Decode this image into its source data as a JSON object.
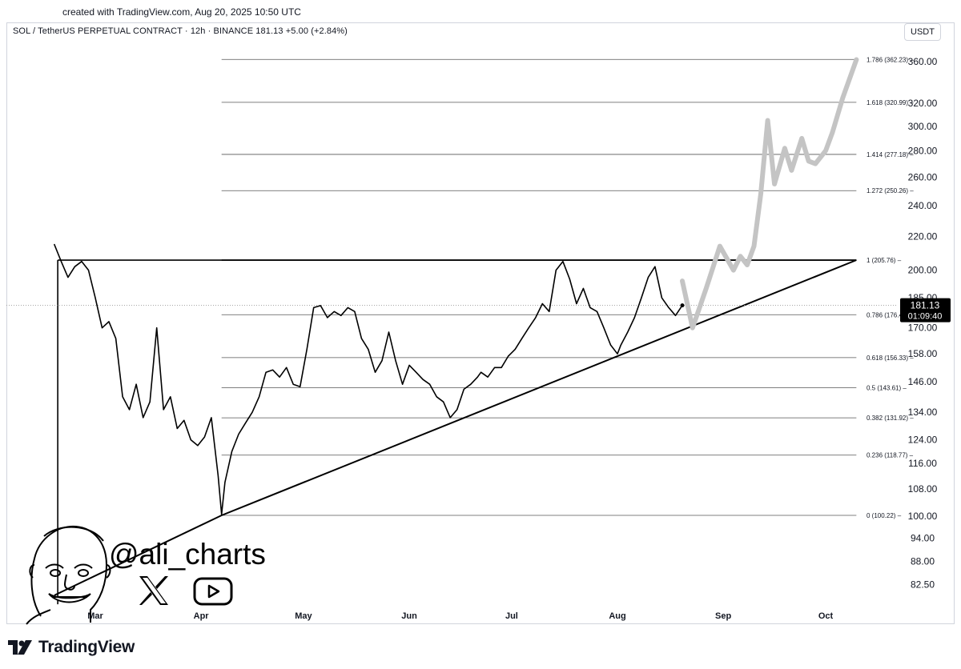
{
  "header": {
    "created_text": "created with TradingView.com, Aug 20, 2025 10:50 UTC",
    "symbol_line": "SOL / TetherUS PERPETUAL CONTRACT · 12h · BINANCE  181.13  +5.00 (+2.84%)",
    "currency_button": "USDT"
  },
  "footer": {
    "brand": "TradingView"
  },
  "watermark": {
    "handle": "@ali_charts",
    "icons": [
      "x-logo-icon",
      "youtube-play-icon",
      "avatar-sketch"
    ]
  },
  "colors": {
    "price_line": "#000000",
    "projection": "#c4c4c4",
    "fib_line": "#787b86",
    "price_badge": "#000000"
  },
  "chart_data": {
    "type": "line",
    "title": "SOL / TetherUS PERPETUAL CONTRACT · 12h · BINANCE",
    "interval": "12h",
    "scale": "log",
    "ylim": [
      78,
      375
    ],
    "xlim": [
      "2025-02-17",
      "2025-10-15"
    ],
    "grid": false,
    "y_ticks": [
      82.5,
      88,
      94,
      100,
      108,
      116,
      124,
      134,
      146,
      158,
      170,
      185,
      200,
      220,
      240,
      260,
      280,
      300,
      320,
      360
    ],
    "y_tick_labels": [
      "82.50",
      "88.00",
      "94.00",
      "100.00",
      "108.00",
      "116.00",
      "124.00",
      "134.00",
      "146.00",
      "158.00",
      "170.00",
      "185.00",
      "200.00",
      "220.00",
      "240.00",
      "260.00",
      "280.00",
      "300.00",
      "320.00",
      "360.00"
    ],
    "x_ticks": [
      {
        "label": "Mar",
        "date": "2025-03-01"
      },
      {
        "label": "Apr",
        "date": "2025-04-01"
      },
      {
        "label": "May",
        "date": "2025-05-01"
      },
      {
        "label": "Jun",
        "date": "2025-06-01"
      },
      {
        "label": "Jul",
        "date": "2025-07-01"
      },
      {
        "label": "Aug",
        "date": "2025-08-01"
      },
      {
        "label": "Sep",
        "date": "2025-09-01"
      },
      {
        "label": "Oct",
        "date": "2025-10-01"
      }
    ],
    "current_price": {
      "value": 181.13,
      "label": "181.13",
      "countdown": "01:09:40"
    },
    "fib_levels": [
      {
        "ratio": 0,
        "price": 100.22,
        "label": "0 (100.22)"
      },
      {
        "ratio": 0.236,
        "price": 118.77,
        "label": "0.236 (118.77)"
      },
      {
        "ratio": 0.382,
        "price": 131.92,
        "label": "0.382 (131.92)"
      },
      {
        "ratio": 0.5,
        "price": 143.61,
        "label": "0.5 (143.61)"
      },
      {
        "ratio": 0.618,
        "price": 156.33,
        "label": "0.618 (156.33)"
      },
      {
        "ratio": 0.786,
        "price": 176.42,
        "label": "0.786 (176.42)"
      },
      {
        "ratio": 1,
        "price": 205.76,
        "label": "1 (205.76)"
      },
      {
        "ratio": 1.272,
        "price": 250.26,
        "label": "1.272 (250.26)"
      },
      {
        "ratio": 1.414,
        "price": 277.18,
        "label": "1.414 (277.18)"
      },
      {
        "ratio": 1.618,
        "price": 320.99,
        "label": "1.618 (320.99)"
      },
      {
        "ratio": 1.786,
        "price": 362.23,
        "label": "1.786 (362.23)"
      }
    ],
    "fib_range": {
      "start": "2025-04-07",
      "end": "2025-10-10"
    },
    "resistance_line": {
      "points": [
        {
          "x": "2025-02-18",
          "y": 205.76
        },
        {
          "x": "2025-10-10",
          "y": 205.76
        }
      ]
    },
    "vertical_marker": {
      "x": "2025-02-18",
      "y_top": 205.76,
      "y_bottom": 78
    },
    "trendline": {
      "points": [
        {
          "x": "2025-02-17",
          "y": 80
        },
        {
          "x": "2025-04-07",
          "y": 100.22
        },
        {
          "x": "2025-10-10",
          "y": 205.76
        }
      ]
    },
    "series": [
      {
        "name": "SOL",
        "x": [
          "2025-02-17",
          "2025-02-19",
          "2025-02-21",
          "2025-02-23",
          "2025-02-25",
          "2025-02-27",
          "2025-03-01",
          "2025-03-03",
          "2025-03-05",
          "2025-03-07",
          "2025-03-09",
          "2025-03-11",
          "2025-03-13",
          "2025-03-15",
          "2025-03-17",
          "2025-03-19",
          "2025-03-21",
          "2025-03-23",
          "2025-03-25",
          "2025-03-27",
          "2025-03-29",
          "2025-03-31",
          "2025-04-02",
          "2025-04-04",
          "2025-04-06",
          "2025-04-07",
          "2025-04-08",
          "2025-04-10",
          "2025-04-12",
          "2025-04-14",
          "2025-04-16",
          "2025-04-18",
          "2025-04-20",
          "2025-04-22",
          "2025-04-24",
          "2025-04-26",
          "2025-04-28",
          "2025-04-30",
          "2025-05-02",
          "2025-05-04",
          "2025-05-06",
          "2025-05-08",
          "2025-05-10",
          "2025-05-12",
          "2025-05-14",
          "2025-05-16",
          "2025-05-18",
          "2025-05-20",
          "2025-05-22",
          "2025-05-24",
          "2025-05-26",
          "2025-05-28",
          "2025-05-30",
          "2025-06-01",
          "2025-06-03",
          "2025-06-05",
          "2025-06-07",
          "2025-06-09",
          "2025-06-11",
          "2025-06-13",
          "2025-06-15",
          "2025-06-17",
          "2025-06-19",
          "2025-06-21",
          "2025-06-22",
          "2025-06-24",
          "2025-06-26",
          "2025-06-28",
          "2025-06-30",
          "2025-07-02",
          "2025-07-04",
          "2025-07-06",
          "2025-07-08",
          "2025-07-10",
          "2025-07-12",
          "2025-07-14",
          "2025-07-16",
          "2025-07-18",
          "2025-07-20",
          "2025-07-22",
          "2025-07-24",
          "2025-07-26",
          "2025-07-28",
          "2025-07-30",
          "2025-08-01",
          "2025-08-02",
          "2025-08-04",
          "2025-08-06",
          "2025-08-08",
          "2025-08-10",
          "2025-08-12",
          "2025-08-14",
          "2025-08-16",
          "2025-08-18",
          "2025-08-20"
        ],
        "y": [
          215,
          205,
          196,
          202,
          205,
          200,
          185,
          170,
          173,
          165,
          140,
          135,
          145,
          132,
          138,
          170,
          135,
          140,
          128,
          131,
          124,
          122,
          125,
          132,
          112,
          100.5,
          110,
          120,
          126,
          130,
          134,
          140,
          150,
          151,
          148,
          152,
          145,
          144,
          160,
          180,
          181,
          175,
          178,
          176,
          180,
          178,
          165,
          160,
          150,
          155,
          168,
          155,
          145,
          153,
          150,
          147,
          145,
          140,
          138,
          132,
          135,
          143,
          145,
          148,
          150,
          148,
          152,
          152,
          157,
          160,
          165,
          170,
          175,
          182,
          178,
          200,
          205,
          195,
          182,
          190,
          180,
          178,
          170,
          162,
          158,
          162,
          168,
          175,
          185,
          196,
          202,
          185,
          180,
          176,
          181.13
        ]
      },
      {
        "name": "Projection",
        "x": [
          "2025-08-20",
          "2025-08-23",
          "2025-08-27",
          "2025-08-31",
          "2025-09-04",
          "2025-09-06",
          "2025-09-08",
          "2025-09-10",
          "2025-09-12",
          "2025-09-14",
          "2025-09-16",
          "2025-09-19",
          "2025-09-21",
          "2025-09-24",
          "2025-09-26",
          "2025-09-28",
          "2025-10-01",
          "2025-10-03",
          "2025-10-06",
          "2025-10-10"
        ],
        "y": [
          194,
          170,
          190,
          214,
          200,
          208,
          203,
          214,
          248,
          305,
          255,
          282,
          265,
          290,
          272,
          270,
          280,
          295,
          325,
          362
        ]
      }
    ]
  }
}
